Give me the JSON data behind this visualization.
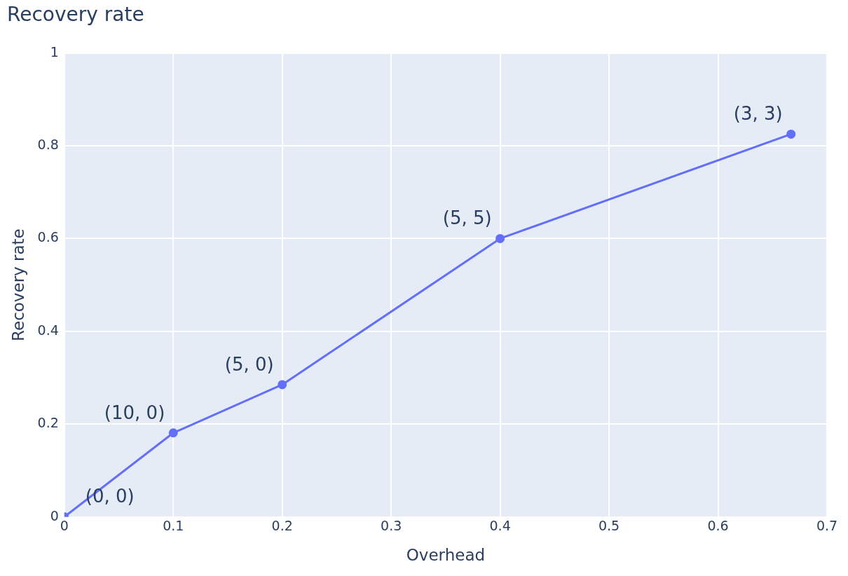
{
  "chart_data": {
    "type": "line",
    "title": "Recovery rate",
    "xlabel": "Overhead",
    "ylabel": "Recovery rate",
    "x": [
      0,
      0.1,
      0.2,
      0.4,
      0.667
    ],
    "series": [
      {
        "color": "#636efa",
        "values": [
          0,
          0.181,
          0.285,
          0.6,
          0.825
        ]
      }
    ],
    "xlim": [
      0,
      0.7
    ],
    "xticks": [
      0,
      0.1,
      0.2,
      0.3,
      0.4,
      0.5,
      0.6,
      0.7
    ],
    "ylim": [
      0,
      1
    ],
    "yticks": [
      0,
      0.2,
      0.4,
      0.6,
      0.8,
      1
    ],
    "grid": true,
    "legend": false,
    "marker": "circle",
    "line_style": "solid",
    "annotations": [
      {
        "text": "(0, 0)",
        "x": 0,
        "y": 0
      },
      {
        "text": "(10, 0)",
        "x": 0.1,
        "y": 0.181
      },
      {
        "text": "(5, 0)",
        "x": 0.2,
        "y": 0.285
      },
      {
        "text": "(5, 5)",
        "x": 0.4,
        "y": 0.6
      },
      {
        "text": "(3, 3)",
        "x": 0.667,
        "y": 0.825
      }
    ]
  }
}
